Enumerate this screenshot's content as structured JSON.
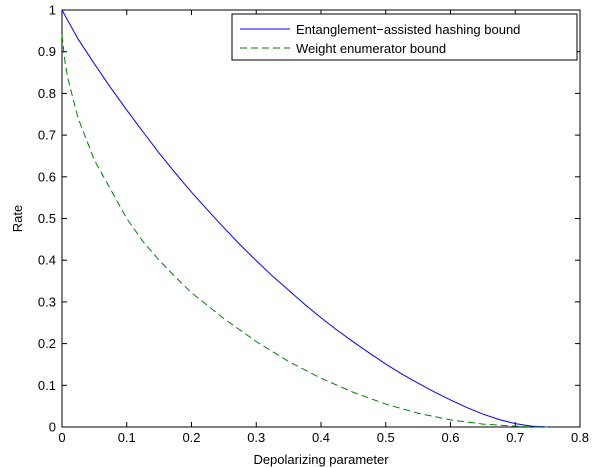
{
  "chart_data": {
    "type": "line",
    "title": "",
    "xlabel": "Depolarizing parameter",
    "ylabel": "Rate",
    "xlim": [
      0,
      0.8
    ],
    "ylim": [
      0,
      1
    ],
    "xticks": [
      0,
      0.1,
      0.2,
      0.3,
      0.4,
      0.5,
      0.6,
      0.7,
      0.8
    ],
    "yticks": [
      0,
      0.1,
      0.2,
      0.3,
      0.4,
      0.5,
      0.6,
      0.7,
      0.8,
      0.9,
      1
    ],
    "grid": false,
    "legend_position": "top-right",
    "series": [
      {
        "name": "Entanglement−assisted hashing bound",
        "color": "#0000ff",
        "style": "solid",
        "x": [
          0,
          0.025,
          0.05,
          0.075,
          0.1,
          0.125,
          0.15,
          0.175,
          0.2,
          0.225,
          0.25,
          0.275,
          0.3,
          0.325,
          0.35,
          0.375,
          0.4,
          0.425,
          0.45,
          0.475,
          0.5,
          0.525,
          0.55,
          0.575,
          0.6,
          0.625,
          0.65,
          0.675,
          0.7,
          0.725,
          0.75
        ],
        "y": [
          1.0,
          0.93,
          0.871,
          0.814,
          0.76,
          0.708,
          0.657,
          0.609,
          0.563,
          0.52,
          0.478,
          0.437,
          0.399,
          0.362,
          0.328,
          0.294,
          0.262,
          0.232,
          0.204,
          0.177,
          0.151,
          0.127,
          0.105,
          0.084,
          0.065,
          0.047,
          0.031,
          0.018,
          0.008,
          0.002,
          0.0
        ]
      },
      {
        "name": "Weight enumerator bound",
        "color": "#007f00",
        "style": "dashed",
        "x": [
          0,
          0.005,
          0.01,
          0.025,
          0.05,
          0.075,
          0.1,
          0.125,
          0.15,
          0.175,
          0.2,
          0.25,
          0.3,
          0.35,
          0.4,
          0.45,
          0.5,
          0.55,
          0.6,
          0.65,
          0.7,
          0.725,
          0.75
        ],
        "y": [
          0.94,
          0.87,
          0.83,
          0.74,
          0.64,
          0.57,
          0.5,
          0.445,
          0.4,
          0.36,
          0.322,
          0.26,
          0.205,
          0.157,
          0.117,
          0.083,
          0.055,
          0.033,
          0.017,
          0.007,
          0.002,
          0.0005,
          0.0
        ]
      }
    ]
  }
}
